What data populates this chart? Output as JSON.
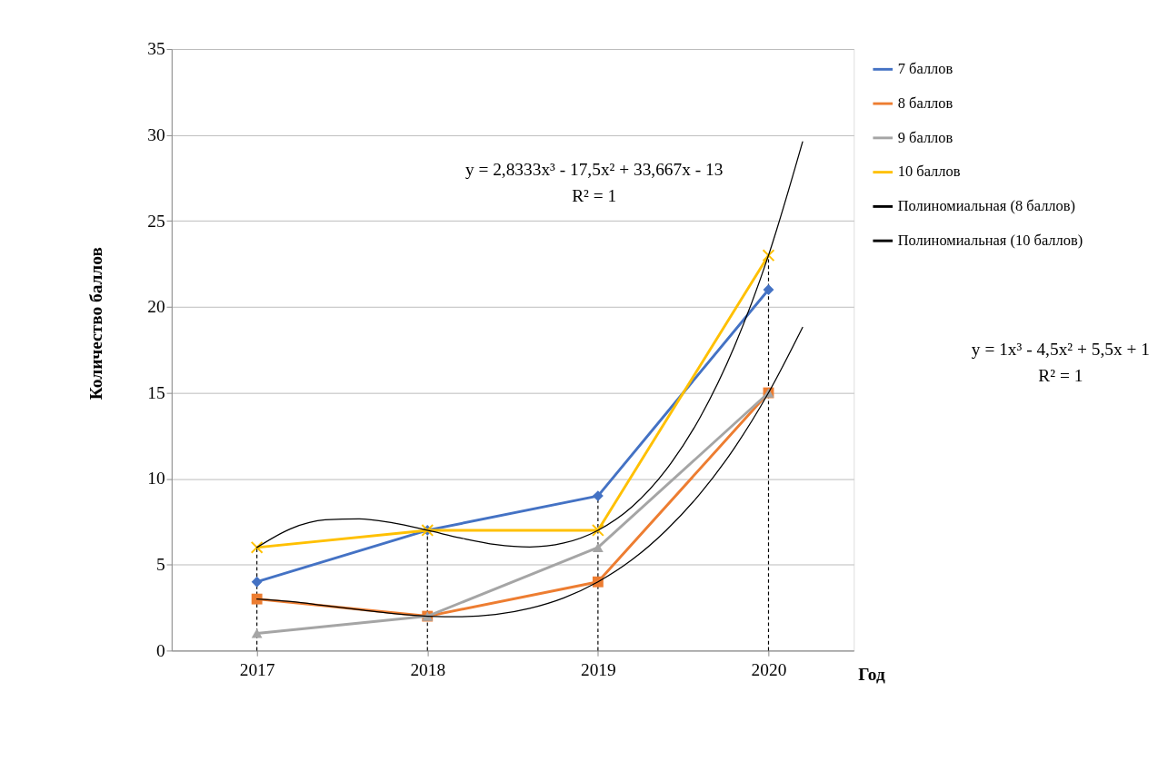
{
  "chart_data": {
    "type": "line",
    "xlabel": "Год",
    "ylabel": "Количество баллов",
    "x": [
      2017,
      2018,
      2019,
      2020
    ],
    "xlim": [
      2016.5,
      2020.5
    ],
    "xticks": [
      2017,
      2018,
      2019,
      2020
    ],
    "ylim": [
      0,
      35
    ],
    "yticks": [
      0,
      5,
      10,
      15,
      20,
      25,
      30,
      35
    ],
    "grid": "y",
    "legend": "right",
    "series": [
      {
        "name": "7 баллов",
        "color": "#4472c4",
        "marker": "diamond",
        "values": [
          4,
          7,
          9,
          21
        ]
      },
      {
        "name": "8 баллов",
        "color": "#ed7d31",
        "marker": "square",
        "values": [
          3,
          2,
          4,
          15
        ]
      },
      {
        "name": "9 баллов",
        "color": "#a5a5a5",
        "marker": "triangle",
        "values": [
          1,
          2,
          6,
          15
        ]
      },
      {
        "name": "10 баллов",
        "color": "#ffc000",
        "marker": "cross",
        "values": [
          6,
          7,
          7,
          23
        ]
      },
      {
        "name": "Полиномиальная (8 баллов)",
        "color": "#000000",
        "type": "line",
        "marker": "none",
        "x": [
          2017,
          2017.2,
          2017.4,
          2017.6,
          2017.8,
          2018,
          2018.2,
          2018.4,
          2018.6,
          2018.8,
          2019,
          2019.2,
          2019.4,
          2019.6,
          2019.8,
          2020,
          2020.2
        ],
        "values": [
          3,
          2.85,
          2.62,
          2.38,
          2.15,
          2,
          1.97,
          2.1,
          2.46,
          3.07,
          4,
          5.29,
          7.0,
          9.14,
          11.79,
          15,
          18.81
        ]
      },
      {
        "name": "Полиномиальная (10 баллов)",
        "color": "#000000",
        "type": "line",
        "marker": "none",
        "x": [
          2017,
          2017.2,
          2017.4,
          2017.6,
          2017.8,
          2018,
          2018.2,
          2018.4,
          2018.6,
          2018.8,
          2019,
          2019.2,
          2019.4,
          2019.6,
          2019.8,
          2020,
          2020.2
        ],
        "values": [
          6,
          7.1,
          7.61,
          7.67,
          7.42,
          7,
          6.54,
          6.17,
          6.03,
          6.26,
          7,
          8.37,
          10.53,
          13.59,
          17.7,
          23,
          29.61
        ]
      }
    ],
    "ref_lines": [
      {
        "axis": "x",
        "value": 2017,
        "line_style": "dashed",
        "color": "#000000"
      },
      {
        "axis": "x",
        "value": 2018,
        "line_style": "dashed",
        "color": "#000000"
      },
      {
        "axis": "x",
        "value": 2019,
        "line_style": "dashed",
        "color": "#000000"
      },
      {
        "axis": "x",
        "value": 2020,
        "line_style": "dashed",
        "color": "#000000"
      }
    ],
    "annotations": [
      "y = 2,8333x³ - 17,5x² + 33,667x - 13\nR² = 1",
      "y = 1x³ - 4,5x² + 5,5x + 1\nR² = 1"
    ]
  }
}
